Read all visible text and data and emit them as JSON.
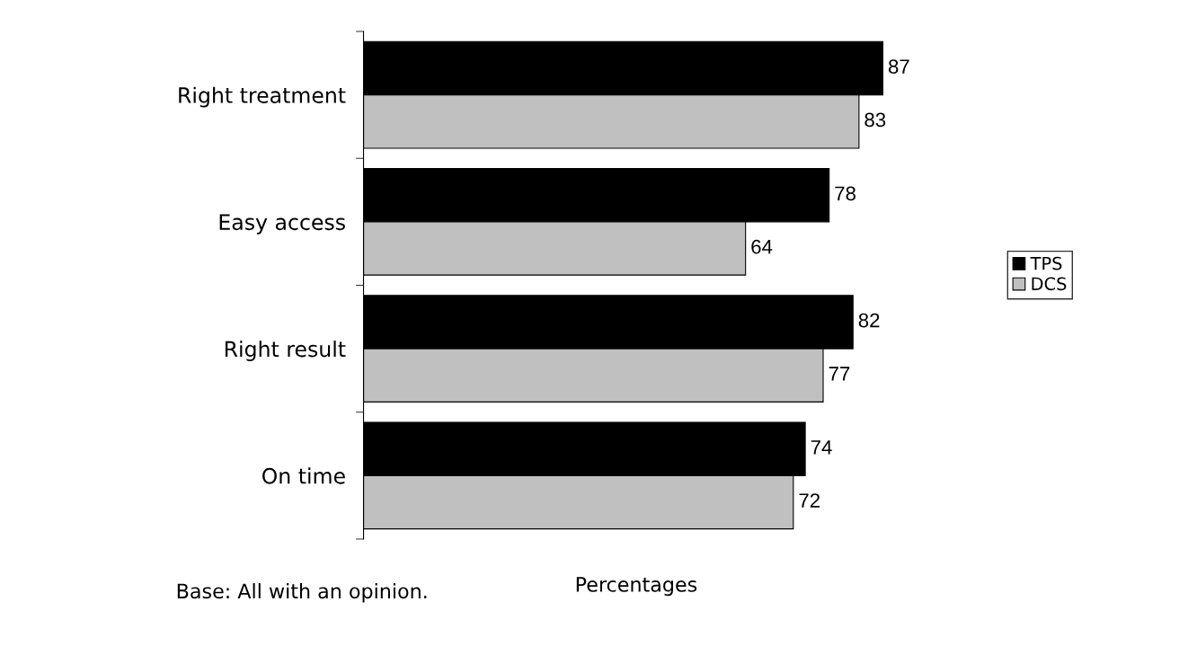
{
  "chart_data": {
    "type": "bar",
    "orientation": "horizontal",
    "categories": [
      "Right treatment",
      "Easy access",
      "Right result",
      "On time"
    ],
    "series": [
      {
        "name": "TPS",
        "color": "#000000",
        "values": [
          87,
          78,
          82,
          74
        ]
      },
      {
        "name": "DCS",
        "color": "#c0c0c0",
        "values": [
          83,
          64,
          77,
          72
        ]
      }
    ],
    "xlabel": "Percentages",
    "tick_labels": "y",
    "data_labels": true,
    "grid": false,
    "legend": "right",
    "annotations": [
      "Base: All with an opinion."
    ]
  }
}
